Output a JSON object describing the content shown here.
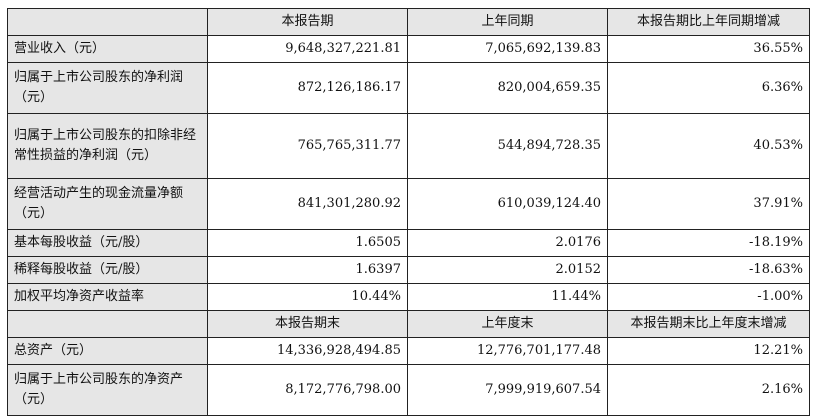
{
  "table": {
    "header1": [
      "",
      "本报告期",
      "上年同期",
      "本报告期比上年同期增减"
    ],
    "rows1": [
      {
        "label": "营业收入（元）",
        "values": [
          "9,648,327,221.81",
          "7,065,692,139.83",
          "36.55%"
        ]
      },
      {
        "label": "归属于上市公司股东的净利润（元）",
        "values": [
          "872,126,186.17",
          "820,004,659.35",
          "6.36%"
        ]
      },
      {
        "label": "归属于上市公司股东的扣除非经常性损益的净利润（元）",
        "values": [
          "765,765,311.77",
          "544,894,728.35",
          "40.53%"
        ]
      },
      {
        "label": "经营活动产生的现金流量净额（元）",
        "values": [
          "841,301,280.92",
          "610,039,124.40",
          "37.91%"
        ]
      },
      {
        "label": "基本每股收益（元/股）",
        "values": [
          "1.6505",
          "2.0176",
          "-18.19%"
        ]
      },
      {
        "label": "稀释每股收益（元/股）",
        "values": [
          "1.6397",
          "2.0152",
          "-18.63%"
        ]
      },
      {
        "label": "加权平均净资产收益率",
        "values": [
          "10.44%",
          "11.44%",
          "-1.00%"
        ]
      }
    ],
    "header2": [
      "",
      "本报告期末",
      "上年度末",
      "本报告期末比上年度末增减"
    ],
    "rows2": [
      {
        "label": "总资产（元）",
        "values": [
          "14,336,928,494.85",
          "12,776,701,177.48",
          "12.21%"
        ]
      },
      {
        "label": "归属于上市公司股东的净资产（元）",
        "values": [
          "8,172,776,798.00",
          "7,999,919,607.54",
          "2.16%"
        ]
      }
    ]
  }
}
